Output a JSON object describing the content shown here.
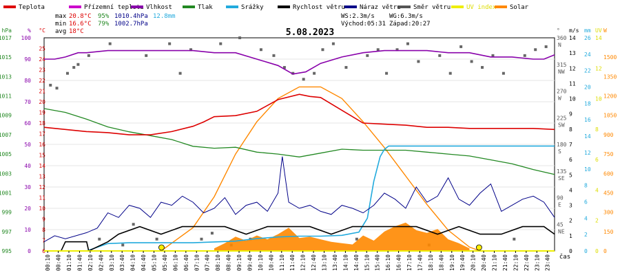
{
  "chart_data": {
    "type": "line",
    "title": "5.08.2023",
    "x_axis_label": "čas",
    "x_ticks": [
      "00:10",
      "00:40",
      "01:10",
      "01:40",
      "02:10",
      "02:40",
      "03:10",
      "03:40",
      "04:10",
      "04:40",
      "05:10",
      "05:40",
      "06:10",
      "06:40",
      "07:10",
      "07:40",
      "08:10",
      "08:40",
      "09:10",
      "09:40",
      "10:10",
      "10:40",
      "11:10",
      "11:40",
      "12:10",
      "12:40",
      "13:10",
      "13:40",
      "14:10",
      "14:40",
      "15:10",
      "15:40",
      "16:10",
      "16:40",
      "17:10",
      "17:40",
      "18:10",
      "18:40",
      "19:10",
      "19:40",
      "20:10",
      "20:40",
      "21:10",
      "21:40",
      "22:10",
      "22:40",
      "23:10",
      "23:40"
    ],
    "legend": [
      {
        "label": "Teplota",
        "color": "#dd0000"
      },
      {
        "label": "Přízemní teplota",
        "color": "#cc00cc"
      },
      {
        "label": "Vlhkost",
        "color": "#8800aa"
      },
      {
        "label": "Tlak",
        "color": "#228822"
      },
      {
        "label": "Srážky",
        "color": "#22aadd"
      },
      {
        "label": "Rychlost větru",
        "color": "#000000"
      },
      {
        "label": "Náraz větru",
        "color": "#000088"
      },
      {
        "label": "Směr větru",
        "color": "#555555"
      },
      {
        "label": "UV index",
        "color": "#eeee00"
      },
      {
        "label": "Solar",
        "color": "#ff8800"
      }
    ],
    "stats": {
      "max_label": "max",
      "min_label": "min",
      "avg_label": "avg",
      "max_temp": "20.8°C",
      "max_hum": "95%",
      "max_press": "1010.4hPa",
      "max_rain": "12.8mm",
      "min_temp": "16.6°C",
      "min_hum": "79%",
      "min_press": "1002.7hPa",
      "avg_temp": "18°C",
      "ws": "WS:2.3m/s",
      "wg": "WG:6.3m/s",
      "sunrise": "Východ:05:31",
      "sunset": "Západ:20:27"
    },
    "axes": {
      "hpa": {
        "unit": "hPa",
        "ticks": [
          "1017",
          "1015",
          "1013",
          "1011",
          "1009",
          "1007",
          "1005",
          "1003",
          "1001",
          "999",
          "997",
          "995"
        ],
        "range": [
          995,
          1017
        ]
      },
      "pct": {
        "unit": "%",
        "ticks": [
          "100",
          "90",
          "80",
          "70",
          "60",
          "50",
          "40",
          "30",
          "20",
          "10",
          "0"
        ],
        "range": [
          0,
          100
        ]
      },
      "temp": {
        "unit": "°C",
        "ticks": [
          "25",
          "24",
          "23",
          "22",
          "21",
          "20",
          "19",
          "18",
          "17",
          "16",
          "15",
          "14",
          "13",
          "12",
          "11",
          "10",
          "9",
          "8",
          "7",
          "6"
        ],
        "range": [
          6,
          26
        ]
      },
      "dir": {
        "unit": "°",
        "ticks": [
          "360 N",
          "315 NW",
          "270 W",
          "225 SW",
          "180 S",
          "135 SE",
          "90 E",
          "45 NE"
        ],
        "range": [
          0,
          360
        ]
      },
      "ms": {
        "unit": "m/s",
        "ticks": [
          "14",
          "13",
          "12",
          "11",
          "10",
          "9",
          "8",
          "7",
          "6",
          "5",
          "4",
          "3",
          "2",
          "1",
          "0"
        ],
        "range": [
          0,
          14
        ]
      },
      "mm": {
        "unit": "mm",
        "ticks": [
          "26",
          "24",
          "22",
          "20",
          "18",
          "16",
          "14",
          "12",
          "10",
          "8",
          "6",
          "4",
          "2",
          "0"
        ],
        "range": [
          0,
          26
        ]
      },
      "uv": {
        "unit": "UV",
        "ticks": [
          "14",
          "12",
          "10",
          "8",
          "6",
          "4",
          "2",
          "0"
        ],
        "range": [
          0,
          14
        ]
      },
      "w": {
        "unit": "W",
        "ticks": [
          "1500",
          "1350",
          "1200",
          "1050",
          "900",
          "750",
          "600",
          "450",
          "300",
          "150",
          "0"
        ],
        "range": [
          0,
          1650
        ]
      }
    },
    "series": {
      "temperature_x": [
        0,
        1,
        2,
        3,
        4,
        5,
        6,
        7,
        7.5,
        8,
        9,
        10,
        11,
        12,
        12.5,
        13,
        14,
        15,
        16,
        17,
        18,
        19,
        20,
        21,
        22,
        23,
        24
      ],
      "temperature": [
        17.6,
        17.4,
        17.2,
        17.1,
        16.9,
        16.9,
        17.2,
        17.7,
        18.1,
        18.6,
        18.7,
        19.1,
        20.2,
        20.7,
        20.5,
        20.4,
        19.2,
        18.0,
        17.9,
        17.8,
        17.6,
        17.6,
        17.5,
        17.5,
        17.5,
        17.5,
        17.4
      ],
      "humidity_x": [
        0,
        0.5,
        1,
        1.6,
        2,
        3,
        4,
        5,
        6,
        7,
        8,
        9,
        10,
        11,
        11.7,
        12.3,
        13,
        14,
        15,
        16,
        17,
        18,
        19,
        20,
        21,
        22,
        23,
        23.5,
        24
      ],
      "humidity": [
        90,
        90,
        91,
        93,
        93,
        94,
        94,
        94,
        94,
        94,
        93,
        93,
        90,
        87,
        83,
        84,
        88,
        91,
        93,
        94,
        94,
        94,
        93,
        93,
        91,
        91,
        90,
        90,
        92
      ],
      "pressure_x": [
        0,
        1,
        2,
        3,
        4,
        5,
        6,
        7,
        8,
        9,
        10,
        11,
        12,
        13,
        14,
        15,
        16,
        17,
        18,
        19,
        20,
        21,
        22,
        23,
        24
      ],
      "pressure": [
        1009.7,
        1009.3,
        1008.6,
        1007.8,
        1007.3,
        1006.9,
        1006.5,
        1005.8,
        1005.6,
        1005.7,
        1005.2,
        1005.0,
        1004.7,
        1005.1,
        1005.5,
        1005.4,
        1005.4,
        1005.4,
        1005.2,
        1005.0,
        1004.8,
        1004.4,
        1004.0,
        1003.4,
        1002.9
      ],
      "rain_x": [
        0,
        1,
        2,
        3,
        4,
        5,
        6,
        7,
        8,
        9,
        10,
        11,
        12,
        13,
        14,
        14.8,
        15.2,
        15.5,
        15.8,
        16,
        16.2,
        17,
        18,
        19,
        20,
        21,
        22,
        23,
        24
      ],
      "rain_mm": [
        0,
        0,
        0,
        0.9,
        1.0,
        1.0,
        1.0,
        1.0,
        1.1,
        1.2,
        1.5,
        1.7,
        1.8,
        1.8,
        1.9,
        2.3,
        4.0,
        8.5,
        11.5,
        12.4,
        12.8,
        12.8,
        12.8,
        12.8,
        12.8,
        12.8,
        12.8,
        12.8,
        12.8
      ],
      "wind_x": [
        0,
        0.8,
        1.0,
        2.0,
        2.1,
        3.0,
        3.5,
        4.5,
        5.5,
        6.5,
        7.5,
        8.5,
        9.5,
        10.5,
        11.5,
        12.5,
        13.5,
        14.5,
        15.5,
        16.5,
        17.5,
        18.5,
        19.5,
        20.5,
        21.5,
        22.5,
        23.5,
        24
      ],
      "wind_speed_ms": [
        0,
        0,
        0.6,
        0.6,
        0,
        0.6,
        1.1,
        1.6,
        1.1,
        1.6,
        1.6,
        1.6,
        1.1,
        1.6,
        1.6,
        1.6,
        1.1,
        1.6,
        1.6,
        1.6,
        1.6,
        1.1,
        1.6,
        1.1,
        1.1,
        1.6,
        1.6,
        1.1
      ],
      "gust_x": [
        0,
        0.5,
        1,
        2,
        2.5,
        3,
        3.5,
        4,
        4.5,
        5,
        5.5,
        6,
        6.5,
        7,
        7.5,
        8,
        8.5,
        9,
        9.5,
        10,
        10.5,
        11,
        11.2,
        11.5,
        12,
        12.5,
        13,
        13.5,
        14,
        14.5,
        15,
        15.5,
        16,
        16.5,
        17,
        17.5,
        18,
        18.5,
        19,
        19.5,
        20,
        20.5,
        21,
        21.5,
        22,
        22.5,
        23,
        23.5,
        24
      ],
      "wind_gust_ms": [
        0.6,
        1.0,
        0.8,
        1.2,
        1.5,
        2.5,
        2.2,
        3.0,
        2.8,
        2.2,
        3.2,
        3.0,
        3.6,
        3.2,
        2.5,
        2.8,
        3.5,
        2.4,
        3.0,
        3.2,
        2.6,
        3.8,
        6.2,
        3.2,
        2.8,
        3.0,
        2.6,
        2.4,
        3.0,
        2.8,
        2.5,
        3.0,
        3.8,
        3.4,
        2.8,
        4.2,
        3.2,
        3.6,
        4.8,
        3.4,
        3.0,
        3.8,
        4.4,
        2.6,
        3.0,
        3.4,
        3.6,
        3.2,
        2.2
      ],
      "wind_dir_x": [
        0.3,
        0.6,
        1.1,
        1.4,
        1.6,
        2.1,
        2.6,
        3.1,
        3.7,
        4.2,
        4.8,
        5.3,
        5.9,
        6.4,
        6.9,
        7.4,
        7.9,
        8.3,
        8.8,
        9.2,
        9.7,
        10.2,
        10.8,
        11.3,
        11.7,
        12.2,
        12.7,
        13.1,
        13.6,
        14.2,
        14.7,
        15.2,
        15.7,
        16.1,
        16.6,
        17.1,
        17.6,
        18.1,
        18.6,
        19.1,
        19.6,
        20.1,
        20.6,
        21.1,
        21.6,
        22.1,
        22.6,
        23.1,
        23.6
      ],
      "wind_dir_deg": [
        280,
        275,
        300,
        310,
        315,
        330,
        20,
        350,
        10,
        45,
        330,
        20,
        350,
        300,
        340,
        20,
        30,
        350,
        10,
        360,
        20,
        340,
        330,
        310,
        300,
        290,
        300,
        340,
        350,
        310,
        20,
        330,
        340,
        300,
        340,
        350,
        320,
        10,
        330,
        300,
        345,
        320,
        310,
        330,
        300,
        20,
        330,
        340,
        345
      ],
      "uv_index_x": [
        0,
        24
      ],
      "uv_index": [
        0,
        0
      ],
      "solar_x": [
        5.5,
        7,
        8,
        9,
        10,
        11,
        12,
        13,
        14,
        15,
        16,
        17,
        18,
        19,
        20,
        20.5
      ],
      "solar_w": [
        0,
        180,
        420,
        750,
        1000,
        1180,
        1270,
        1270,
        1180,
        1000,
        800,
        580,
        360,
        160,
        30,
        0
      ],
      "solar_measured_x": [
        8,
        8.5,
        9,
        9.5,
        10,
        10.5,
        11,
        11.5,
        12,
        12.5,
        13,
        13.5,
        14,
        14.5,
        15,
        15.5,
        16,
        16.5,
        17,
        17.5,
        18,
        18.5,
        19,
        19.5,
        20
      ],
      "solar_measured_w": [
        20,
        60,
        110,
        80,
        120,
        90,
        130,
        180,
        100,
        110,
        90,
        70,
        60,
        50,
        120,
        80,
        150,
        190,
        220,
        160,
        140,
        170,
        90,
        60,
        20
      ]
    },
    "markers": [
      {
        "name": "sunrise",
        "x": 5.52
      },
      {
        "name": "sunset",
        "x": 20.45
      }
    ]
  }
}
